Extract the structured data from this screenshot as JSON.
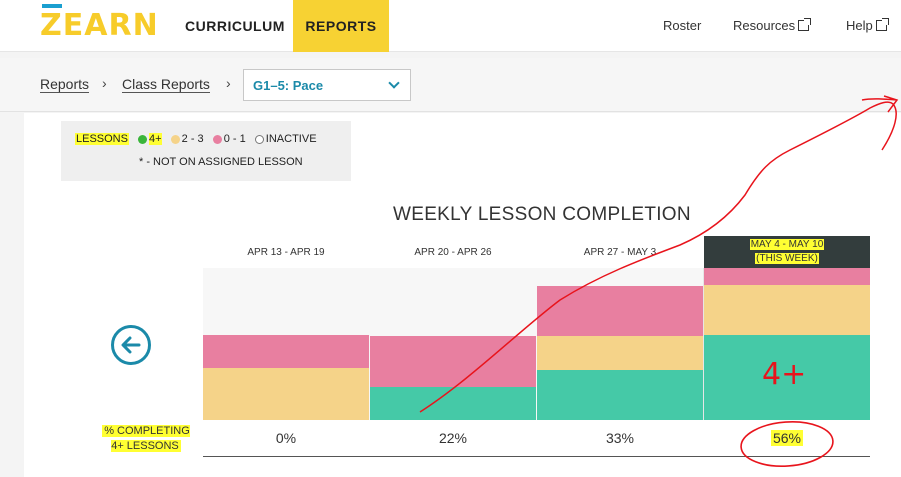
{
  "nav": {
    "logo": "ZEARN",
    "curriculum": "CURRICULUM",
    "reports": "REPORTS",
    "roster": "Roster",
    "resources": "Resources",
    "help": "Help"
  },
  "breadcrumb": {
    "reports": "Reports",
    "class_reports": "Class Reports",
    "separator": "›",
    "selected_report": "G1–5: Pace"
  },
  "legend": {
    "title": "LESSONS",
    "items": [
      {
        "label": "4+",
        "color": "#3ab53a"
      },
      {
        "label": "2 - 3",
        "color": "#f5d389"
      },
      {
        "label": "0 - 1",
        "color": "#e87fa0"
      },
      {
        "label": "INACTIVE",
        "color": "#ffffff"
      }
    ],
    "note": "* - NOT ON ASSIGNED LESSON"
  },
  "chart_data": {
    "type": "bar",
    "stacked": true,
    "title": "WEEKLY LESSON COMPLETION",
    "categories": [
      "APR 13 - APR 19",
      "APR 20 - APR 26",
      "APR 27 - MAY 3",
      "MAY 4 - MAY 10"
    ],
    "current_week_note": "(THIS WEEK)",
    "ylim": [
      0,
      100
    ],
    "series": [
      {
        "name": "4+",
        "color": "#45c9a7",
        "values": [
          0,
          22,
          33,
          56
        ]
      },
      {
        "name": "2 - 3",
        "color": "#f5d389",
        "values": [
          34,
          0,
          22,
          33
        ]
      },
      {
        "name": "0 - 1",
        "color": "#e87fa0",
        "values": [
          22,
          33,
          33,
          11
        ]
      },
      {
        "name": "INACTIVE",
        "color": "#f7f7f7",
        "values": [
          44,
          45,
          12,
          0
        ]
      }
    ],
    "completion_label": "% COMPLETING 4+ LESSONS",
    "completion_values": [
      "0%",
      "22%",
      "33%",
      "56%"
    ]
  },
  "colors": {
    "accent_yellow": "#f7d233",
    "teal": "#1b8aa9",
    "highlighter": "#ffff33",
    "annotation_red": "#e8141c"
  },
  "annotation_text": "4+"
}
